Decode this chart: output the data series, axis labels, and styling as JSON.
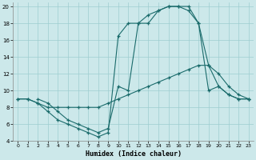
{
  "xlabel": "Humidex (Indice chaleur)",
  "bg_color": "#cce8ea",
  "grid_color": "#9ecdd0",
  "line_color": "#1a6b6b",
  "xlim": [
    -0.5,
    23.5
  ],
  "ylim": [
    4,
    20.5
  ],
  "xticks": [
    0,
    1,
    2,
    3,
    4,
    5,
    6,
    7,
    8,
    9,
    10,
    11,
    12,
    13,
    14,
    15,
    16,
    17,
    18,
    19,
    20,
    21,
    22,
    23
  ],
  "yticks": [
    4,
    6,
    8,
    10,
    12,
    14,
    16,
    18,
    20
  ],
  "curve1_x": [
    0,
    1,
    2,
    3,
    4,
    5,
    6,
    7,
    8,
    9,
    10,
    11,
    12,
    13,
    14,
    15,
    16,
    17,
    18,
    19,
    20,
    21,
    22,
    23
  ],
  "curve1_y": [
    9,
    9,
    8.5,
    8,
    8,
    8,
    8,
    8,
    8,
    8.5,
    9,
    9.5,
    10,
    10.5,
    11,
    11.5,
    12,
    12.5,
    13,
    13,
    12,
    10.5,
    9.5,
    9
  ],
  "curve2_x": [
    0,
    1,
    2,
    3,
    4,
    5,
    6,
    7,
    8,
    9,
    10,
    11,
    12,
    13,
    14,
    15,
    16,
    17,
    18,
    19,
    20,
    21,
    22,
    23
  ],
  "curve2_y": [
    9,
    9,
    8.5,
    7.5,
    6.5,
    6,
    5.5,
    5,
    4.5,
    5,
    16.5,
    18,
    18,
    19,
    19.5,
    20,
    20,
    20,
    18,
    10,
    10.5,
    9.5,
    9,
    9
  ],
  "curve3_x": [
    2,
    3,
    4,
    5,
    6,
    7,
    8,
    9,
    10,
    11,
    12,
    13,
    14,
    15,
    16,
    17,
    18,
    19,
    20,
    21,
    22,
    23
  ],
  "curve3_y": [
    9,
    8.5,
    7.5,
    6.5,
    6,
    5.5,
    5,
    5.5,
    10.5,
    10,
    18,
    18,
    19.5,
    20,
    20,
    19.5,
    18,
    13,
    10.5,
    9.5,
    9,
    9
  ]
}
